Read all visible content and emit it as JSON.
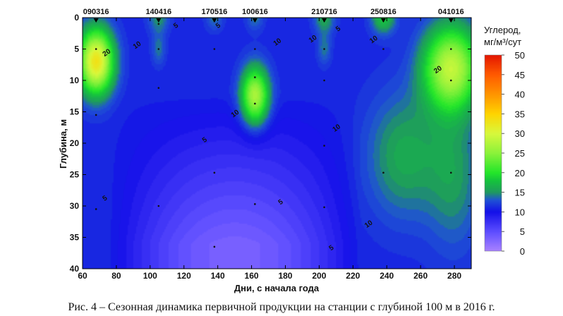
{
  "chart_data": {
    "type": "heatmap",
    "title": "",
    "xlabel": "Дни, с начала года",
    "ylabel": "Глубина, м",
    "xlim": [
      60,
      290
    ],
    "ylim": [
      40,
      0
    ],
    "x_ticks": [
      60,
      80,
      100,
      120,
      140,
      160,
      180,
      200,
      220,
      240,
      260,
      280
    ],
    "y_ticks": [
      0,
      5,
      10,
      15,
      20,
      25,
      30,
      35,
      40
    ],
    "stations": [
      {
        "label": "090316",
        "day": 68
      },
      {
        "label": "140416",
        "day": 105
      },
      {
        "label": "170516",
        "day": 138
      },
      {
        "label": "100616",
        "day": 162
      },
      {
        "label": "210716",
        "day": 203
      },
      {
        "label": "250816",
        "day": 238
      },
      {
        "label": "041016",
        "day": 278
      }
    ],
    "sample_points": [
      [
        68,
        5
      ],
      [
        68,
        15.5
      ],
      [
        68,
        30.5
      ],
      [
        105,
        1
      ],
      [
        105,
        5
      ],
      [
        105,
        11.2
      ],
      [
        105,
        30
      ],
      [
        138,
        0.5
      ],
      [
        138,
        5
      ],
      [
        138,
        24.7
      ],
      [
        138,
        36.5
      ],
      [
        162,
        0.5
      ],
      [
        162,
        5
      ],
      [
        162,
        9.5
      ],
      [
        162,
        13.7
      ],
      [
        162,
        29.7
      ],
      [
        203,
        0.5
      ],
      [
        203,
        5
      ],
      [
        203,
        10
      ],
      [
        203,
        20.4
      ],
      [
        203,
        30.2
      ],
      [
        238,
        0.5
      ],
      [
        238,
        5
      ],
      [
        238,
        24.7
      ],
      [
        278,
        0.5
      ],
      [
        278,
        5
      ],
      [
        278,
        10
      ],
      [
        278,
        24.7
      ]
    ],
    "contour_labels": [
      {
        "value": "20",
        "x": 74,
        "y": 5.5
      },
      {
        "value": "10",
        "x": 92,
        "y": 4.3
      },
      {
        "value": "5",
        "x": 115,
        "y": 1.2
      },
      {
        "value": "5",
        "x": 140,
        "y": 1.2
      },
      {
        "value": "10",
        "x": 175,
        "y": 3.8
      },
      {
        "value": "10",
        "x": 196,
        "y": 3.3
      },
      {
        "value": "5",
        "x": 211,
        "y": 1.7
      },
      {
        "value": "10",
        "x": 232,
        "y": 3.4
      },
      {
        "value": "20",
        "x": 270,
        "y": 8.2
      },
      {
        "value": "10",
        "x": 150,
        "y": 15.2
      },
      {
        "value": "10",
        "x": 210,
        "y": 17.5
      },
      {
        "value": "5",
        "x": 132,
        "y": 19.4
      },
      {
        "value": "5",
        "x": 73,
        "y": 28.7
      },
      {
        "value": "5",
        "x": 177,
        "y": 29.3
      },
      {
        "value": "10",
        "x": 229,
        "y": 32.8
      },
      {
        "value": "5",
        "x": 207,
        "y": 36.6
      }
    ],
    "blobs": [
      {
        "x": 68,
        "y": 7,
        "sx": 10,
        "sy": 5,
        "amp": 22
      },
      {
        "x": 162,
        "y": 12.5,
        "sx": 8,
        "sy": 4.5,
        "amp": 16
      },
      {
        "x": 278,
        "y": 8,
        "sx": 16,
        "sy": 6.5,
        "amp": 17
      },
      {
        "x": 250,
        "y": 22,
        "sx": 22,
        "sy": 10,
        "amp": 5
      },
      {
        "x": 280,
        "y": 25,
        "sx": 16,
        "sy": 12,
        "amp": 4
      },
      {
        "x": 105,
        "y": 5,
        "sx": 4,
        "sy": 2.5,
        "amp": 3
      },
      {
        "x": 203,
        "y": 5,
        "sx": 4,
        "sy": 2.5,
        "amp": 3
      },
      {
        "x": 105,
        "y": 0,
        "sx": 6,
        "sy": 2.5,
        "amp": 4
      },
      {
        "x": 203,
        "y": 0,
        "sx": 6,
        "sy": 2.5,
        "amp": 5
      },
      {
        "x": 238,
        "y": 0,
        "sx": 7,
        "sy": 2.5,
        "amp": 7
      },
      {
        "x": 138,
        "y": 0,
        "sx": 5,
        "sy": 2,
        "amp": 3
      },
      {
        "x": 162,
        "y": 0,
        "sx": 5,
        "sy": 2,
        "amp": 3
      }
    ],
    "colorbar": {
      "title_line1": "Углерод,",
      "title_line2": "мг/м³/сут",
      "min": 0,
      "max": 50,
      "ticks": [
        0,
        5,
        10,
        15,
        20,
        25,
        30,
        35,
        40,
        45,
        50
      ],
      "stops": [
        {
          "value": 0,
          "color": "#a982ff"
        },
        {
          "value": 5,
          "color": "#5c4dff"
        },
        {
          "value": 10,
          "color": "#1410e8"
        },
        {
          "value": 13,
          "color": "#1f52d4"
        },
        {
          "value": 15,
          "color": "#1f9a5e"
        },
        {
          "value": 18,
          "color": "#15c43c"
        },
        {
          "value": 20,
          "color": "#24e62a"
        },
        {
          "value": 25,
          "color": "#8cf23a"
        },
        {
          "value": 30,
          "color": "#d8f83c"
        },
        {
          "value": 35,
          "color": "#ffd400"
        },
        {
          "value": 40,
          "color": "#ff9400"
        },
        {
          "value": 45,
          "color": "#ff5a00"
        },
        {
          "value": 50,
          "color": "#e41600"
        }
      ]
    }
  },
  "caption": "Рис. 4 – Сезонная динамика первичной продукции на станции с глубиной 100 м в 2016 г."
}
